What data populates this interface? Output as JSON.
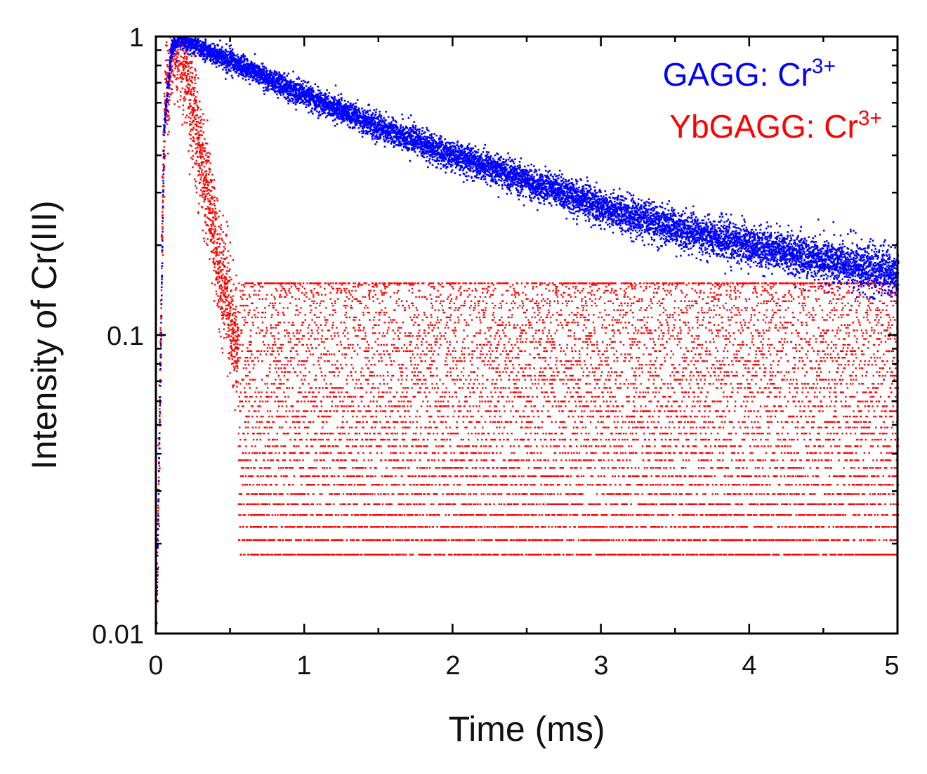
{
  "chart_data": {
    "type": "scatter",
    "title": "",
    "xlabel": "Time (ms)",
    "ylabel": "Intensity of Cr(III)",
    "xlim": [
      0,
      5
    ],
    "ylim": [
      0.01,
      1
    ],
    "yscale": "log",
    "x_ticks": [
      0,
      1,
      2,
      3,
      4,
      5
    ],
    "x_tick_labels": [
      "0",
      "1",
      "2",
      "3",
      "4",
      "5"
    ],
    "y_ticks": [
      0.01,
      0.1,
      1
    ],
    "y_tick_labels": [
      "0.01",
      "0.1",
      "1"
    ],
    "legend_position": "top-right",
    "series": [
      {
        "name": "GAGG: Cr3+",
        "label_base": "GAGG: Cr",
        "label_sup": "3+",
        "color": "#0000ff",
        "x": [
          0,
          0.05,
          0.1,
          0.15,
          0.2,
          0.5,
          1.0,
          1.5,
          2.0,
          2.5,
          3.0,
          3.5,
          4.0,
          4.5,
          5.0
        ],
        "y": [
          0.012,
          0.5,
          0.92,
          1.0,
          0.97,
          0.83,
          0.64,
          0.5,
          0.4,
          0.33,
          0.27,
          0.23,
          0.2,
          0.18,
          0.16
        ]
      },
      {
        "name": "YbGAGG: Cr3+",
        "label_base": "YbGAGG: Cr",
        "label_sup": "3+",
        "color": "#ff0000",
        "x": [
          0,
          0.05,
          0.1,
          0.14,
          0.2,
          0.3,
          0.4,
          0.5,
          0.6,
          0.7,
          0.8,
          1.0,
          1.5,
          2.0,
          3.0,
          4.0,
          5.0
        ],
        "y": [
          0.012,
          0.55,
          0.9,
          1.0,
          0.8,
          0.4,
          0.2,
          0.11,
          0.07,
          0.055,
          0.045,
          0.04,
          0.035,
          0.032,
          0.03,
          0.03,
          0.03
        ]
      }
    ]
  }
}
